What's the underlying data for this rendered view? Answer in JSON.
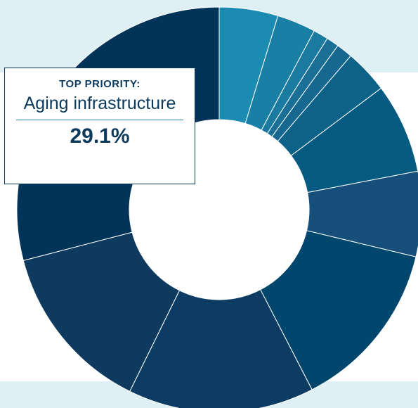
{
  "chart_data": {
    "type": "pie",
    "style": "donut",
    "values": [
      4.7,
      3.1,
      1.2,
      1.0,
      1.3,
      3.5,
      7.2,
      6.8,
      13.7,
      14.9,
      13.7,
      29.1
    ],
    "colors": [
      "#1b8bb1",
      "#197fa4",
      "#1b7aa0",
      "#1a6f97",
      "#176890",
      "#0d6288",
      "#045a80",
      "#16507a",
      "#00466d",
      "#0c3c63",
      "#0f3a5f",
      "#023459"
    ],
    "legend": "none"
  },
  "callout": {
    "kicker": "TOP PRIORITY:",
    "title": "Aging infrastructure",
    "value": "29.1%",
    "border_color": "#0b3a5c",
    "rule_color": "#2b86b0"
  },
  "background": {
    "band_color": "#dff0f5"
  }
}
